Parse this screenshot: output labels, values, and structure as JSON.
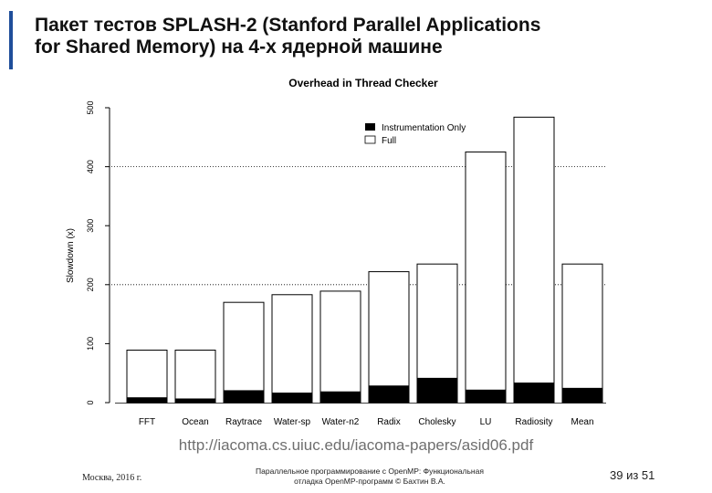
{
  "slide": {
    "title_line1": "Пакет тестов SPLASH-2 (Stanford Parallel Applications",
    "title_line2": "for Shared Memory) на 4-х ядерной машине",
    "url": "http://iacoma.cs.uiuc.edu/iacoma-papers/asid06.pdf",
    "footer_left": "Москва, 2016 г.",
    "footer_center_line1": "Параллельное программирование с OpenMP: Функциональная",
    "footer_center_line2": "отладка OpenMP-программ © Бахтин В.А.",
    "page_number": "39 из 51"
  },
  "chart_data": {
    "type": "bar",
    "title": "Overhead in Thread Checker",
    "ylabel": "Slowdown (x)",
    "xlabel": "",
    "ylim": [
      0,
      500
    ],
    "yticks": [
      0,
      100,
      200,
      300,
      400,
      500
    ],
    "grid": "dotted lines at 200 and 400",
    "legend_position": "top-right",
    "categories": [
      "FFT",
      "Ocean",
      "Raytrace",
      "Water-sp",
      "Water-n2",
      "Radix",
      "Cholesky",
      "LU",
      "Radiosity",
      "Mean"
    ],
    "series": [
      {
        "name": "Instrumentation Only",
        "color": "#000000",
        "values": [
          9,
          7,
          21,
          17,
          19,
          29,
          42,
          22,
          34,
          25
        ]
      },
      {
        "name": "Full",
        "color": "#ffffff",
        "values": [
          89,
          89,
          170,
          183,
          189,
          222,
          235,
          425,
          484,
          235
        ]
      }
    ],
    "axis_color": "#000000"
  }
}
